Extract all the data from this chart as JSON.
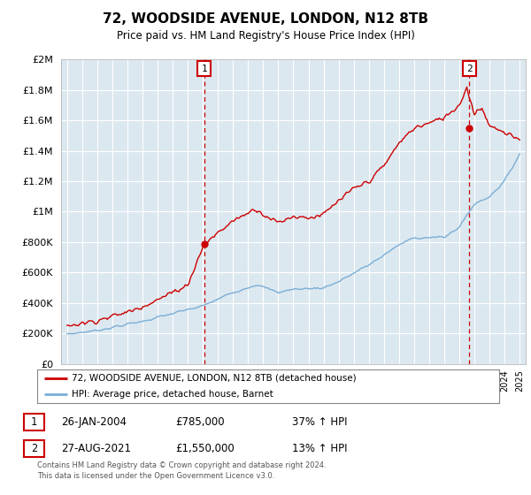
{
  "title": "72, WOODSIDE AVENUE, LONDON, N12 8TB",
  "subtitle": "Price paid vs. HM Land Registry's House Price Index (HPI)",
  "legend_line1": "72, WOODSIDE AVENUE, LONDON, N12 8TB (detached house)",
  "legend_line2": "HPI: Average price, detached house, Barnet",
  "transaction1_date": "26-JAN-2004",
  "transaction1_price": "£785,000",
  "transaction1_hpi": "37% ↑ HPI",
  "transaction2_date": "27-AUG-2021",
  "transaction2_price": "£1,550,000",
  "transaction2_hpi": "13% ↑ HPI",
  "footnote1": "Contains HM Land Registry data © Crown copyright and database right 2024.",
  "footnote2": "This data is licensed under the Open Government Licence v3.0.",
  "red_color": "#cc0000",
  "blue_color": "#7aaed6",
  "grid_color": "#c8d8e8",
  "plot_bg_color": "#dce8f0",
  "marker1_x": 2004.08,
  "marker1_y": 785000,
  "marker2_x": 2021.66,
  "marker2_y": 1550000,
  "ylim": [
    0,
    2000000
  ],
  "xlim_start": 1994.6,
  "xlim_end": 2025.4,
  "years_start": 1995,
  "years_end": 2025
}
